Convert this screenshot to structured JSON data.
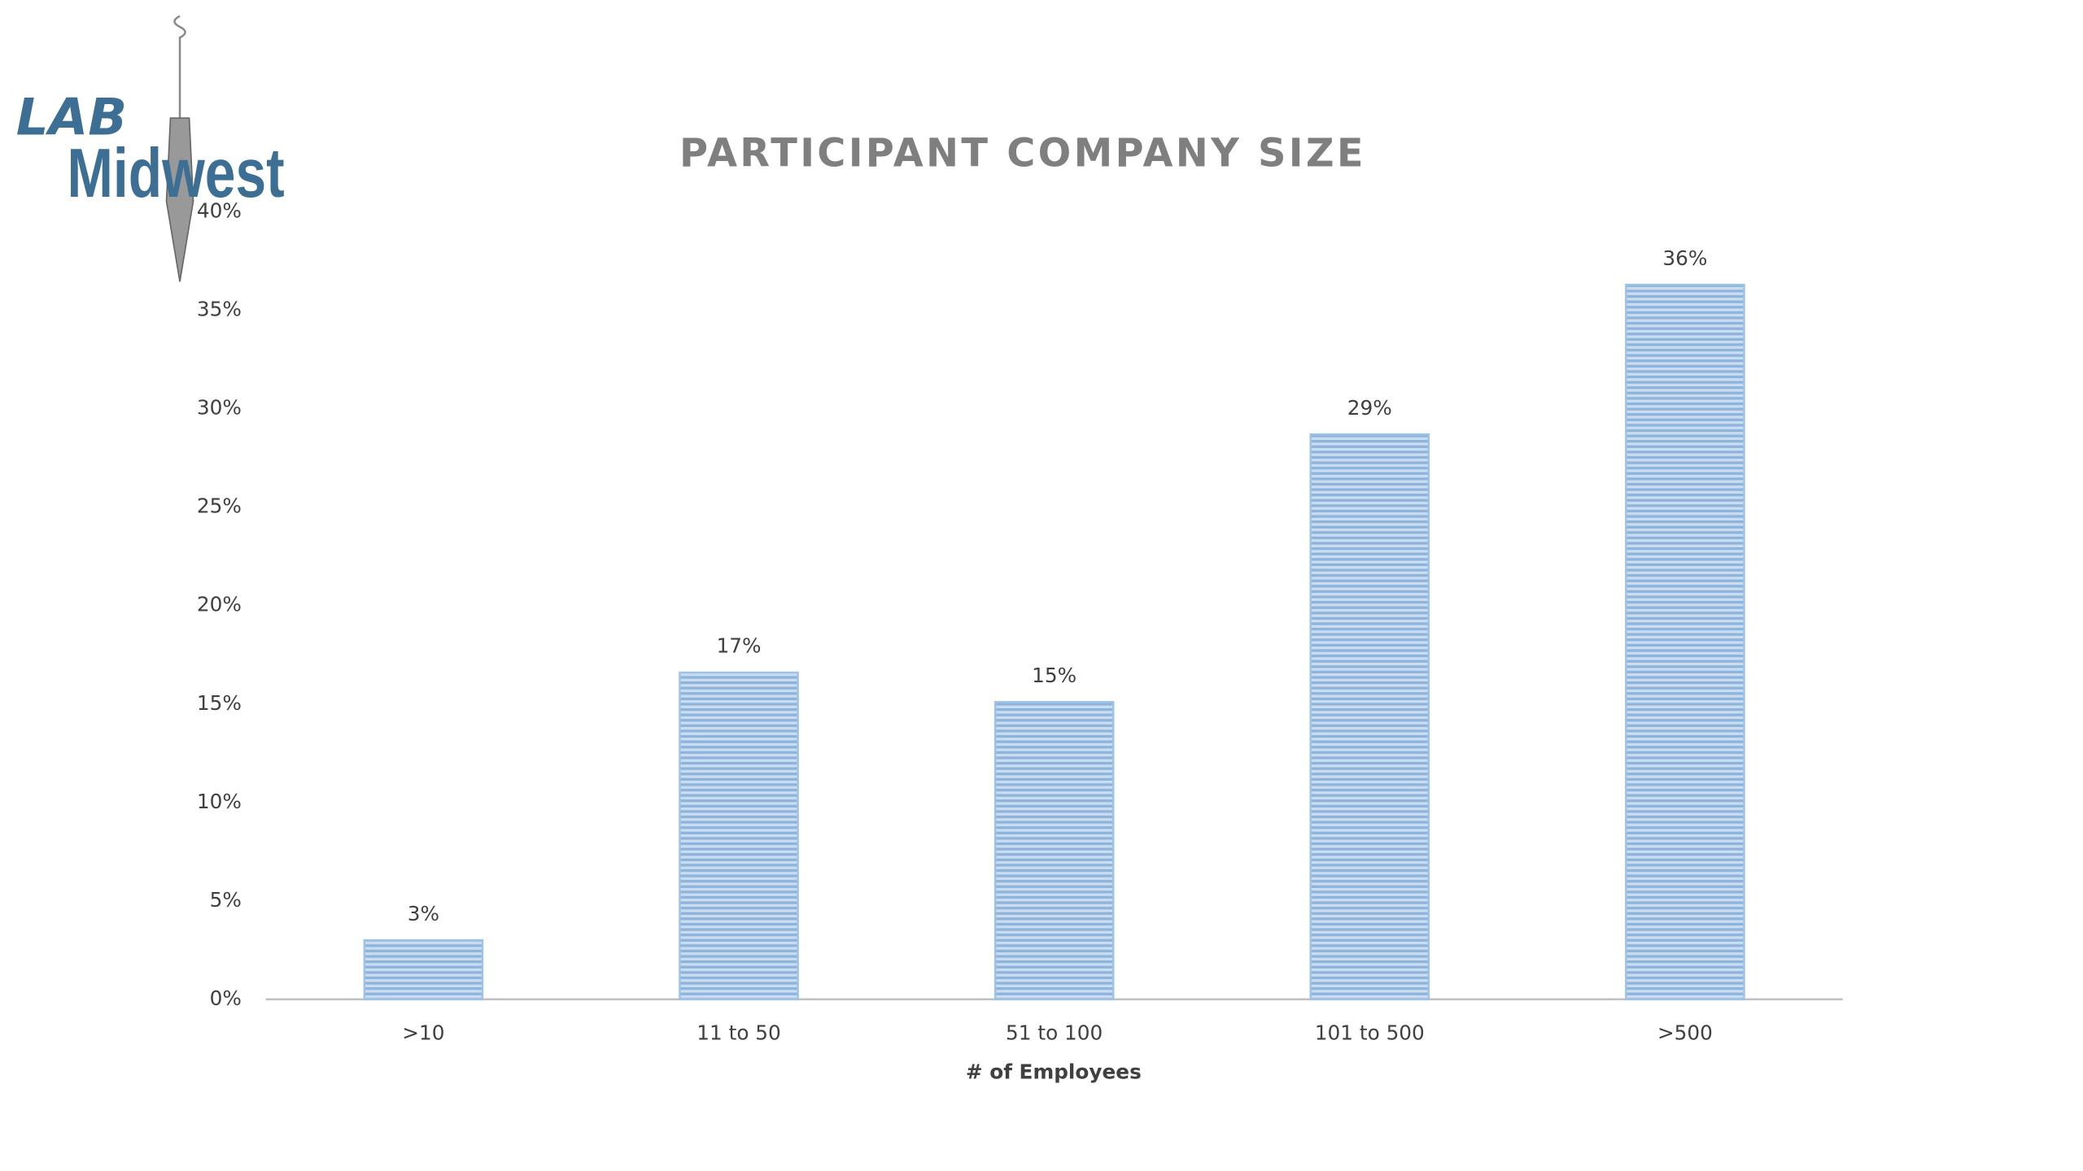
{
  "logo": {
    "line1": "LAB",
    "line2": "Midwest"
  },
  "chart_data": {
    "type": "bar",
    "title": "PARTICIPANT COMPANY SIZE",
    "x_label": "# of Employees",
    "categories": [
      ">10",
      "11 to 50",
      "51 to 100",
      "101 to 500",
      ">500"
    ],
    "values": [
      3,
      16.6,
      15.1,
      28.7,
      36.3
    ],
    "value_labels": [
      "3%",
      "17%",
      "15%",
      "29%",
      "36%"
    ],
    "color": "#9dc3e6",
    "ylim": [
      0,
      40
    ],
    "yticks": [
      {
        "value": 0,
        "label": "0%"
      },
      {
        "value": 5,
        "label": "5%"
      },
      {
        "value": 10,
        "label": "10%"
      },
      {
        "value": 15,
        "label": "15%"
      },
      {
        "value": 20,
        "label": "20%"
      },
      {
        "value": 25,
        "label": "25%"
      },
      {
        "value": 30,
        "label": "30%"
      },
      {
        "value": 35,
        "label": "35%"
      },
      {
        "value": 40,
        "label": "40%"
      }
    ],
    "grid": false
  }
}
